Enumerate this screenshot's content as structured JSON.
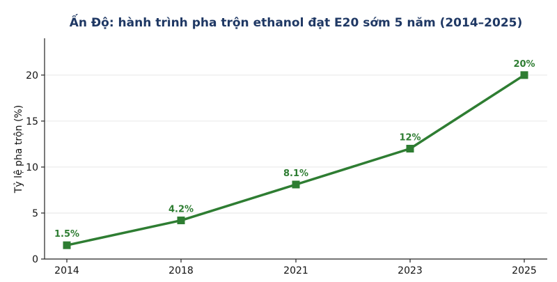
{
  "chart_data": {
    "type": "line",
    "title": "Ấn Độ: hành trình pha trộn ethanol đạt E20 sớm 5 năm (2014–2025)",
    "xlabel": "",
    "ylabel": "Tỷ lệ pha trộn (%)",
    "categories": [
      "2014",
      "2018",
      "2021",
      "2023",
      "2025"
    ],
    "series": [
      {
        "values": [
          1.5,
          4.2,
          8.1,
          12,
          20
        ],
        "labels": [
          "1.5%",
          "4.2%",
          "8.1%",
          "12%",
          "20%"
        ],
        "color": "#2e7d32"
      }
    ],
    "ylim": [
      0,
      24
    ],
    "yticks": [
      0,
      5,
      10,
      15,
      20
    ],
    "grid": "horizontal",
    "marker": "square",
    "legend": "none"
  }
}
